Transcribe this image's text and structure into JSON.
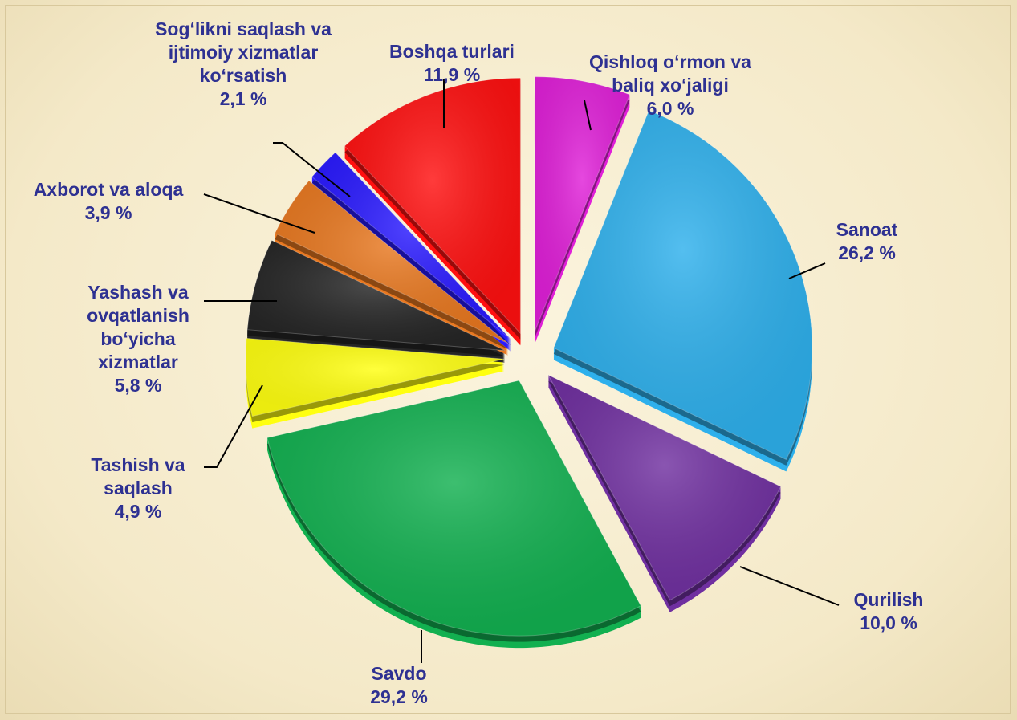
{
  "chart_data": {
    "type": "pie",
    "categories": [
      "Qishloq o‘rmon va baliq xo‘jaligi",
      "Sanoat",
      "Qurilish",
      "Savdo",
      "Tashish va saqlash",
      "Yashash va ovqatlanish bo‘yicha xizmatlar",
      "Axborot va aloqa",
      "Sog‘likni saqlash va ijtimoiy xizmatlar ko‘rsatish",
      "Boshqa turlari"
    ],
    "values": [
      6.0,
      26.2,
      10.0,
      29.2,
      4.9,
      5.8,
      3.9,
      2.1,
      11.9
    ],
    "value_labels": [
      "6,0 %",
      "26,2 %",
      "10,0 %",
      "29,2 %",
      "4,9 %",
      "5,8 %",
      "3,9 %",
      "2,1 %",
      "11,9 %"
    ],
    "colors": [
      "#e020d8",
      "#2eb0ec",
      "#7030a0",
      "#12b050",
      "#ffff10",
      "#262626",
      "#e87820",
      "#2a1aff",
      "#ff1010"
    ]
  }
}
